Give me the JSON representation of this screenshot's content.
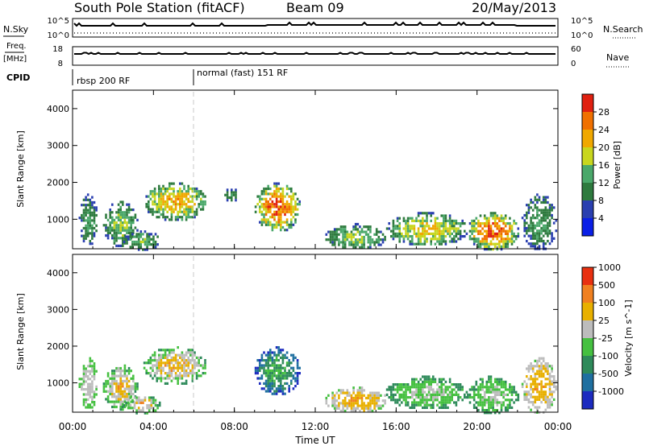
{
  "header": {
    "title": "South Pole Station (fitACF)",
    "beam": "Beam 09",
    "date": "20/May/2013"
  },
  "strips": {
    "nsky_label": "N.Sky",
    "nsky_ticks": [
      "10^5",
      "10^0"
    ],
    "nsearch_label": "N.Search",
    "nsearch_ticks": [
      "10^5",
      "10^0"
    ],
    "freq_label_1": "Freq.",
    "freq_label_2": "[MHz]",
    "freq_ticks": [
      "18",
      "8"
    ],
    "nave_label": "Nave",
    "nave_ticks": [
      "60",
      "0"
    ],
    "cpid_label": "CPID",
    "cpid_segments": [
      "rbsp 200 RF",
      "normal (fast) 151 RF"
    ]
  },
  "time_axis": {
    "label": "Time UT",
    "ticks": [
      "00:00",
      "04:00",
      "08:00",
      "12:00",
      "16:00",
      "20:00",
      "00:00"
    ]
  },
  "colors": {
    "power_scale": [
      "#0a1fe6",
      "#2a3fb0",
      "#2e7a3e",
      "#4aa86a",
      "#c8d61e",
      "#f0a800",
      "#f07000",
      "#e02010"
    ],
    "velocity_scale": [
      "#1c2bbf",
      "#1f6fa0",
      "#2e8a5a",
      "#45c040",
      "#bcbcbc",
      "#e8b000",
      "#f08020",
      "#e83010"
    ]
  },
  "chart_data": [
    {
      "type": "heatmap",
      "title": "",
      "ylabel": "Slant Range [km]",
      "xlabel": "",
      "y_ticks": [
        "1000",
        "2000",
        "3000",
        "4000"
      ],
      "ylim": [
        200,
        4500
      ],
      "xlim_hours": [
        0,
        24
      ],
      "colorbar": {
        "label": "Power [dB]",
        "ticks": [
          "4",
          "8",
          "12",
          "16",
          "20",
          "24",
          "28"
        ],
        "range": [
          0,
          32
        ]
      },
      "echo_regions": [
        {
          "t_start": 0.3,
          "t_end": 1.2,
          "r_min": 300,
          "r_max": 1700,
          "value_low": 4,
          "value_high": 14
        },
        {
          "t_start": 1.5,
          "t_end": 3.2,
          "r_min": 300,
          "r_max": 1500,
          "value_low": 4,
          "value_high": 18
        },
        {
          "t_start": 3.5,
          "t_end": 6.6,
          "r_min": 1000,
          "r_max": 2000,
          "value_low": 6,
          "value_high": 24
        },
        {
          "t_start": 2.5,
          "t_end": 4.3,
          "r_min": 200,
          "r_max": 700,
          "value_low": 4,
          "value_high": 16
        },
        {
          "t_start": 7.4,
          "t_end": 8.2,
          "r_min": 1500,
          "r_max": 1900,
          "value_low": 4,
          "value_high": 12
        },
        {
          "t_start": 9.0,
          "t_end": 11.2,
          "r_min": 700,
          "r_max": 2000,
          "value_low": 6,
          "value_high": 30
        },
        {
          "t_start": 12.5,
          "t_end": 15.5,
          "r_min": 200,
          "r_max": 900,
          "value_low": 4,
          "value_high": 18
        },
        {
          "t_start": 15.5,
          "t_end": 19.5,
          "r_min": 300,
          "r_max": 1200,
          "value_low": 4,
          "value_high": 22
        },
        {
          "t_start": 19.5,
          "t_end": 22.0,
          "r_min": 200,
          "r_max": 1200,
          "value_low": 6,
          "value_high": 30
        },
        {
          "t_start": 22.2,
          "t_end": 23.9,
          "r_min": 200,
          "r_max": 1700,
          "value_low": 4,
          "value_high": 14
        }
      ]
    },
    {
      "type": "heatmap",
      "title": "",
      "ylabel": "Slant Range [km]",
      "xlabel": "Time UT",
      "y_ticks": [
        "1000",
        "2000",
        "3000",
        "4000"
      ],
      "ylim": [
        200,
        4500
      ],
      "xlim_hours": [
        0,
        24
      ],
      "colorbar": {
        "label": "Velocity [m s^-1]",
        "ticks": [
          "1000",
          "500",
          "100",
          "25",
          "-25",
          "-100",
          "-500",
          "-1000"
        ],
        "range": [
          -1000,
          1000
        ]
      },
      "echo_regions": [
        {
          "t_start": 0.3,
          "t_end": 1.2,
          "r_min": 300,
          "r_max": 1700,
          "value_low": -100,
          "value_high": 100
        },
        {
          "t_start": 1.5,
          "t_end": 3.2,
          "r_min": 300,
          "r_max": 1500,
          "value_low": -500,
          "value_high": 500
        },
        {
          "t_start": 3.5,
          "t_end": 6.6,
          "r_min": 1000,
          "r_max": 2000,
          "value_low": -500,
          "value_high": 500
        },
        {
          "t_start": 2.5,
          "t_end": 4.3,
          "r_min": 200,
          "r_max": 700,
          "value_low": -500,
          "value_high": 500
        },
        {
          "t_start": 9.0,
          "t_end": 11.2,
          "r_min": 700,
          "r_max": 2000,
          "value_low": -1000,
          "value_high": -100
        },
        {
          "t_start": 12.5,
          "t_end": 15.5,
          "r_min": 200,
          "r_max": 900,
          "value_low": -100,
          "value_high": 500
        },
        {
          "t_start": 15.5,
          "t_end": 19.5,
          "r_min": 300,
          "r_max": 1200,
          "value_low": -500,
          "value_high": 100
        },
        {
          "t_start": 19.5,
          "t_end": 22.0,
          "r_min": 200,
          "r_max": 1200,
          "value_low": -500,
          "value_high": 100
        },
        {
          "t_start": 22.2,
          "t_end": 23.9,
          "r_min": 200,
          "r_max": 1700,
          "value_low": -100,
          "value_high": 500
        }
      ]
    }
  ]
}
